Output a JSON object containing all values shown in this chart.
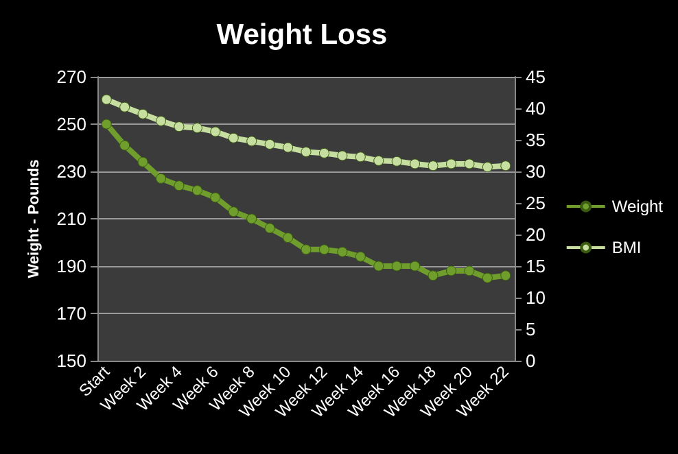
{
  "chart_data": {
    "type": "line",
    "title": "Weight Loss",
    "ylabel": "Weight - Pounds",
    "categories": [
      "Start",
      null,
      "Week 2",
      null,
      "Week 4",
      null,
      "Week 6",
      null,
      "Week 8",
      null,
      "Week 10",
      null,
      "Week 12",
      null,
      "Week 14",
      null,
      "Week 16",
      null,
      "Week 18",
      null,
      "Week 20",
      null,
      "Week 22"
    ],
    "series": [
      {
        "name": "Weight",
        "color": "#6f9e2c",
        "values": [
          250,
          241,
          234,
          227,
          224,
          222,
          219,
          213,
          210,
          206,
          202,
          197,
          197,
          196,
          194,
          190,
          190,
          190,
          186,
          188,
          188,
          185,
          186
        ]
      },
      {
        "name": "BMI",
        "color": "#c6dfa0",
        "axis": "y2",
        "values": [
          41.4,
          40.2,
          39.1,
          38,
          37.1,
          36.9,
          36.3,
          35.3,
          34.8,
          34.3,
          33.8,
          33.1,
          32.9,
          32.5,
          32.3,
          31.7,
          31.6,
          31.2,
          30.9,
          31.2,
          31.2,
          30.7,
          30.9
        ]
      }
    ],
    "ylim": [
      150,
      270
    ],
    "yticks": [
      150,
      170,
      190,
      210,
      230,
      250,
      270
    ],
    "y2lim": [
      0,
      45
    ],
    "y2ticks": [
      0,
      5,
      10,
      15,
      20,
      25,
      30,
      35,
      40,
      45
    ],
    "grid": "y",
    "legend": "right",
    "marker": "circle",
    "line_style": "solid"
  }
}
